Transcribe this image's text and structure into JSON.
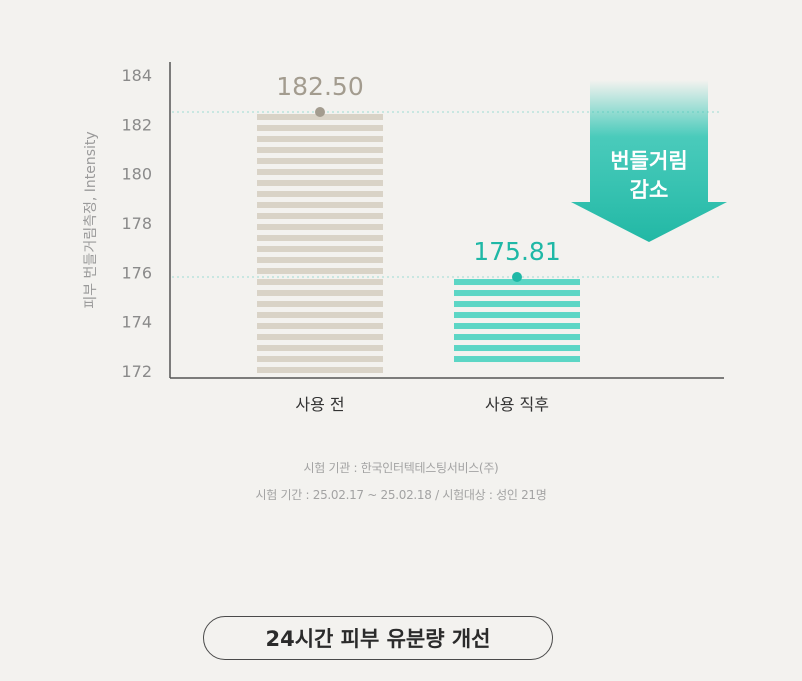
{
  "chart_data": {
    "type": "bar",
    "categories": [
      "사용 전",
      "사용 직후"
    ],
    "values": [
      182.5,
      175.81
    ],
    "value_labels": [
      "182.50",
      "175.81"
    ],
    "ylabel": "피부 번들거림측정, Intensity",
    "ylim": [
      172,
      184
    ],
    "yticks": [
      "172",
      "174",
      "176",
      "178",
      "180",
      "182",
      "184"
    ],
    "grid": false,
    "reference_lines": [
      182.5,
      175.81
    ],
    "colors": {
      "before": "#d9d3c7",
      "after": "#5cd6c5",
      "before_label": "#a39c8f",
      "after_label": "#1fb8a6",
      "arrow": "#2cc4b2"
    },
    "annotation": [
      "번들거림",
      "감소"
    ]
  },
  "footnotes": {
    "line1": "시험 기관 : 한국인터텍테스팅서비스(주)",
    "line2": "시험 기간 : 25.02.17 ~ 25.02.18 / 시험대상 : 성인 21명"
  },
  "headline": "24시간 피부 유분량 개선"
}
